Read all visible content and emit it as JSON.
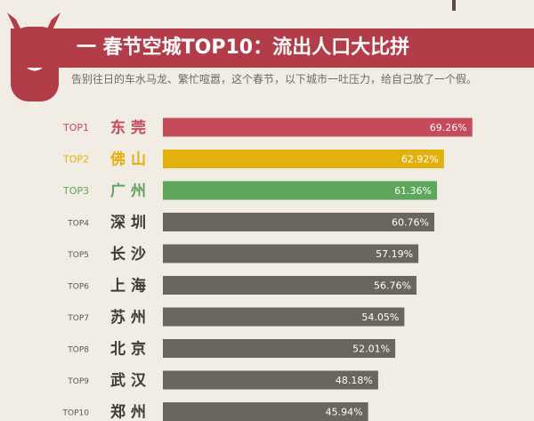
{
  "header": {
    "title": "一  春节空城TOP10：流出人口大比拼",
    "subtitle": "告别往日的车水马龙、繁忙喧嚣，这个春节，以下城市一吐压力，给自己放了一个假。"
  },
  "colors": {
    "background": "#f1ede4",
    "banner": "#b23d49",
    "top1": "#c54a5a",
    "top2": "#e3b00c",
    "top3": "#5da65b",
    "others": "#6b6560"
  },
  "chart_data": {
    "type": "bar",
    "orientation": "horizontal",
    "ranks": [
      "TOP1",
      "TOP2",
      "TOP3",
      "TOP4",
      "TOP5",
      "TOP6",
      "TOP7",
      "TOP8",
      "TOP9",
      "TOP10"
    ],
    "categories": [
      "东 莞",
      "佛 山",
      "广 州",
      "深 圳",
      "长 沙",
      "上 海",
      "苏 州",
      "北 京",
      "武 汉",
      "郑 州"
    ],
    "values": [
      69.26,
      62.92,
      61.36,
      60.76,
      57.19,
      56.76,
      54.05,
      52.01,
      48.18,
      45.94
    ],
    "value_labels": [
      "69.26%",
      "62.92%",
      "61.36%",
      "60.76%",
      "57.19%",
      "56.76%",
      "54.05%",
      "52.01%",
      "48.18%",
      "45.94%"
    ],
    "xlim": [
      0,
      100
    ],
    "grid": false
  }
}
